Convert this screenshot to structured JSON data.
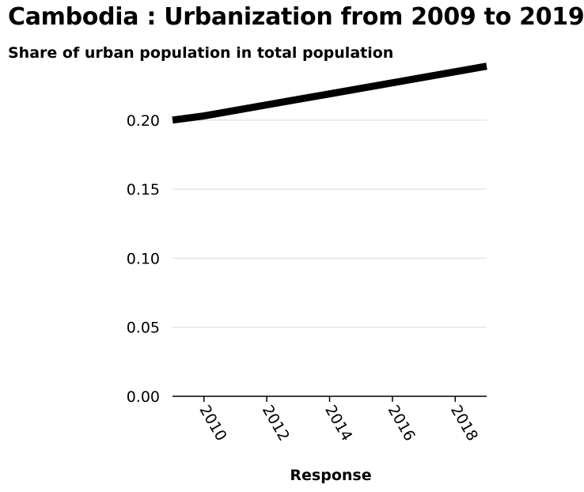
{
  "chart_data": {
    "type": "line",
    "title": "Cambodia : Urbanization from 2009 to 2019",
    "subtitle": "Share of urban population in total population",
    "xlabel": "Response",
    "ylabel": "",
    "xlim": [
      2009,
      2019
    ],
    "ylim": [
      0,
      0.24
    ],
    "x_ticks": [
      2010,
      2012,
      2014,
      2016,
      2018
    ],
    "y_ticks": [
      0,
      0.05,
      0.1,
      0.15,
      0.2
    ],
    "y_tick_labels": [
      "0.00",
      "0.05",
      "0.10",
      "0.15",
      "0.20"
    ],
    "x_tick_labels": [
      "2010",
      "2012",
      "2014",
      "2016",
      "2018"
    ],
    "grid": "horizontal",
    "series": [
      {
        "x": [
          2009,
          2010,
          2011,
          2012,
          2013,
          2014,
          2015,
          2016,
          2017,
          2018,
          2019
        ],
        "values": [
          0.2,
          0.203,
          0.207,
          0.211,
          0.215,
          0.219,
          0.223,
          0.227,
          0.231,
          0.235,
          0.239
        ],
        "color": "#000000"
      }
    ]
  }
}
